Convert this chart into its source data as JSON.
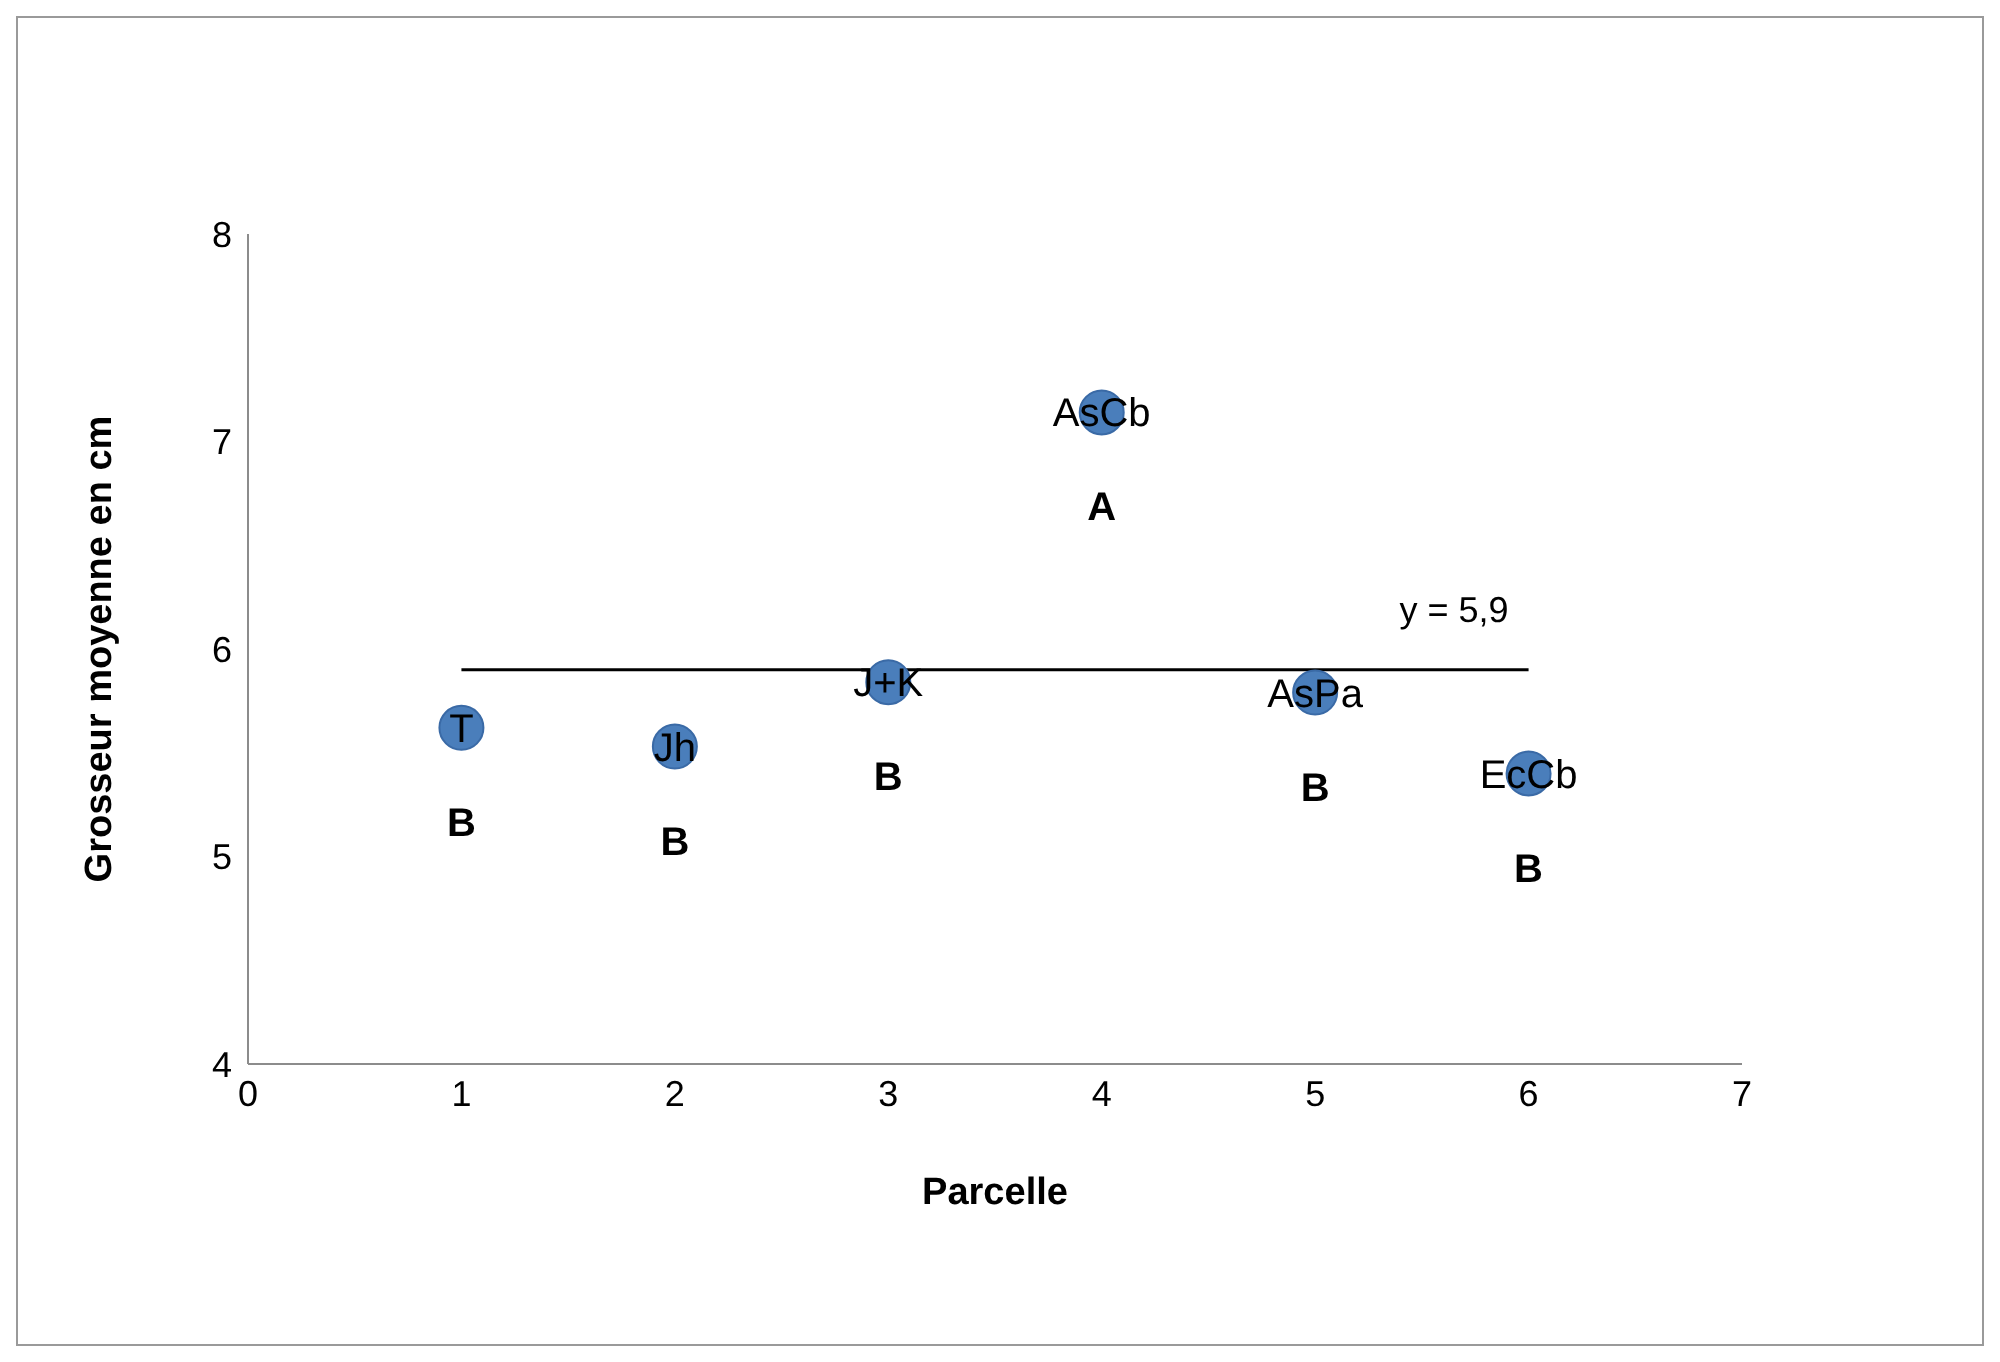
{
  "chart_data": {
    "type": "scatter",
    "xlabel": "Parcelle",
    "ylabel": "Grosseur moyenne en cm",
    "x": [
      1,
      2,
      3,
      4,
      5,
      6
    ],
    "series": [
      {
        "color": "#4a7ebb",
        "values": [
          5.62,
          5.53,
          5.84,
          7.14,
          5.79,
          5.4
        ]
      },
      {
        "type": "line",
        "color": "#000000",
        "x": [
          1,
          6
        ],
        "values": [
          5.9,
          5.9
        ],
        "marker": "none",
        "line_style": "solid"
      }
    ],
    "marker": "circle",
    "xlim": [
      0,
      7
    ],
    "xticks": [
      0,
      1,
      2,
      3,
      4,
      5,
      6,
      7
    ],
    "ylim": [
      4,
      8
    ],
    "yticks": [
      4,
      5,
      6,
      7,
      8
    ],
    "grid": false,
    "annotations": [
      {
        "text": "T",
        "x": 1,
        "y": 5.62
      },
      {
        "text": "Jh",
        "x": 2,
        "y": 5.53
      },
      {
        "text": "J+K",
        "x": 3,
        "y": 5.84
      },
      {
        "text": "AsCb",
        "x": 4,
        "y": 7.14
      },
      {
        "text": "AsPa",
        "x": 5,
        "y": 5.79
      },
      {
        "text": "EcCb",
        "x": 6,
        "y": 5.4
      },
      "B",
      "B",
      "B",
      "A",
      "B",
      "B",
      "y = 5,9"
    ]
  }
}
